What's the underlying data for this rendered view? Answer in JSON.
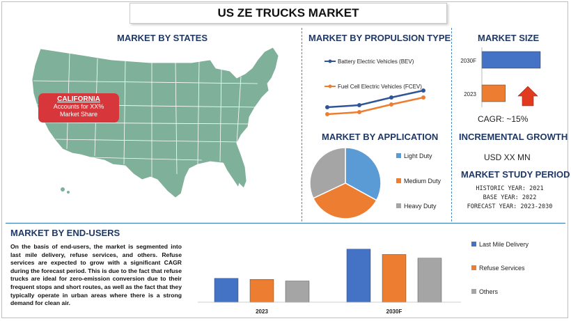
{
  "page_title": "US ZE TRUCKS MARKET",
  "headers": {
    "states": "MARKET BY STATES",
    "propulsion": "MARKET BY PROPULSION TYPE",
    "size": "MARKET SIZE",
    "application": "MARKET BY APPLICATION",
    "incremental": "INCREMENTAL GROWTH",
    "study_period": "MARKET STUDY PERIOD",
    "end_users": "MARKET BY END-USERS"
  },
  "callout": {
    "title": "CALIFORNIA",
    "line1": "Accounts for XX%",
    "line2": "Market Share"
  },
  "cagr": "CAGR:  ~15%",
  "incremental_value": "USD XX MN",
  "study": {
    "historic": "HISTORIC YEAR: 2021",
    "base": "BASE YEAR: 2022",
    "forecast": "FORECAST YEAR: 2023-2030"
  },
  "end_users_text": "On the basis of end-users, the market is segmented into last mile delivery, refuse services, and others. Refuse services are expected to grow with a significant CAGR during the forecast period. This is due to the fact that refuse trucks are ideal for zero-emission conversion due to their frequent stops and short routes, as well as the fact that they typically operate in urban areas where there is a strong demand for clean air.",
  "colors": {
    "blue": "#4472c4",
    "orange": "#ed7d31",
    "gray": "#a5a5a5",
    "map": "#7fb09a",
    "callout": "#d7373a",
    "arrow": "#e03b1f"
  },
  "chart_data": [
    {
      "type": "line",
      "x": [
        1,
        2,
        3,
        4
      ],
      "series": [
        {
          "name": "Battery Electric Vehicles (BEV)",
          "values": [
            1.0,
            1.15,
            1.7,
            2.2
          ]
        },
        {
          "name": "Fuel Cell Electric Vehicles (FCEV)",
          "values": [
            0.5,
            0.65,
            1.2,
            1.7
          ]
        }
      ],
      "ylim": [
        0,
        2.5
      ],
      "legend": "top"
    },
    {
      "type": "bar",
      "orientation": "horizontal",
      "categories": [
        "2030F",
        "2023"
      ],
      "values": [
        100,
        40
      ],
      "colors": [
        "#4472c4",
        "#ed7d31"
      ]
    },
    {
      "type": "pie",
      "labels": [
        "Light Duty",
        "Medium Duty",
        "Heavy Duty"
      ],
      "values": [
        33,
        35,
        32
      ],
      "colors": [
        "#5b9bd5",
        "#ed7d31",
        "#a5a5a5"
      ],
      "legend": "right"
    },
    {
      "type": "bar",
      "categories": [
        "2023",
        "2030F"
      ],
      "series": [
        {
          "name": "Last Mile Delivery",
          "values": [
            45,
            100
          ]
        },
        {
          "name": "Refuse Services",
          "values": [
            43,
            90
          ]
        },
        {
          "name": "Others",
          "values": [
            40,
            83
          ]
        }
      ],
      "ylim": [
        0,
        105
      ],
      "legend": "right"
    }
  ]
}
